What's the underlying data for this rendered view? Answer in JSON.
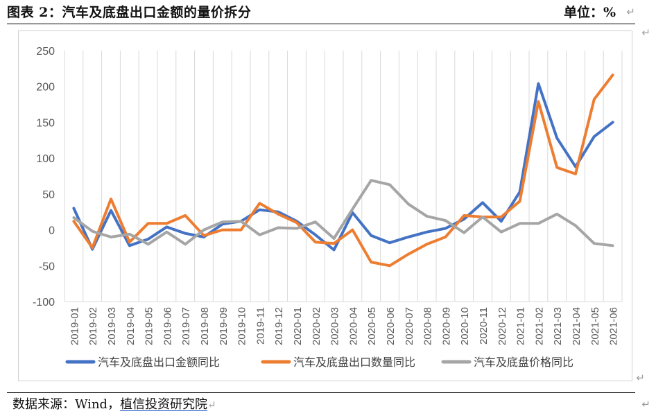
{
  "header": {
    "title": "图表 2：汽车及底盘出口金额的量价拆分",
    "unit": "单位：%"
  },
  "footer": {
    "source_prefix": "数据来源：Wind，",
    "source_company": "植信投资研究院"
  },
  "chart_data": {
    "type": "line",
    "categories": [
      "2019-01",
      "2019-02",
      "2019-03",
      "2019-04",
      "2019-05",
      "2019-06",
      "2019-07",
      "2019-08",
      "2019-09",
      "2019-10",
      "2019-11",
      "2019-12",
      "2020-01",
      "2020-02",
      "2020-03",
      "2020-04",
      "2020-05",
      "2020-06",
      "2020-07",
      "2020-08",
      "2020-09",
      "2020-10",
      "2020-11",
      "2020-12",
      "2021-01",
      "2021-02",
      "2021-03",
      "2021-04",
      "2021-05",
      "2021-06"
    ],
    "ylim": [
      -100,
      250
    ],
    "yticks": [
      -100,
      -50,
      0,
      50,
      100,
      150,
      200,
      250
    ],
    "grid": "vertical",
    "legend_position": "bottom",
    "series": [
      {
        "name": "汽车及底盘出口金额同比",
        "color": "#4472C4",
        "values": [
          30,
          -27,
          27,
          -22,
          -13,
          4,
          -5,
          -10,
          8,
          12,
          28,
          25,
          12,
          -7,
          -28,
          24,
          -8,
          -18,
          -10,
          -3,
          2,
          15,
          38,
          12,
          53,
          204,
          128,
          88,
          130,
          150
        ]
      },
      {
        "name": "汽车及底盘出口数量同比",
        "color": "#ED7D31",
        "values": [
          12,
          -25,
          43,
          -17,
          9,
          9,
          20,
          -8,
          0,
          0,
          37,
          22,
          10,
          -17,
          -19,
          0,
          -45,
          -50,
          -34,
          -20,
          -10,
          20,
          18,
          18,
          40,
          179,
          87,
          78,
          182,
          216
        ]
      },
      {
        "name": "汽车及底盘价格同比",
        "color": "#A5A5A5",
        "values": [
          17,
          -2,
          -10,
          -6,
          -20,
          -3,
          -20,
          0,
          11,
          12,
          -7,
          3,
          2,
          11,
          -12,
          29,
          69,
          63,
          36,
          19,
          13,
          -4,
          18,
          -3,
          9,
          9,
          22,
          6,
          -19,
          -22
        ]
      }
    ]
  }
}
